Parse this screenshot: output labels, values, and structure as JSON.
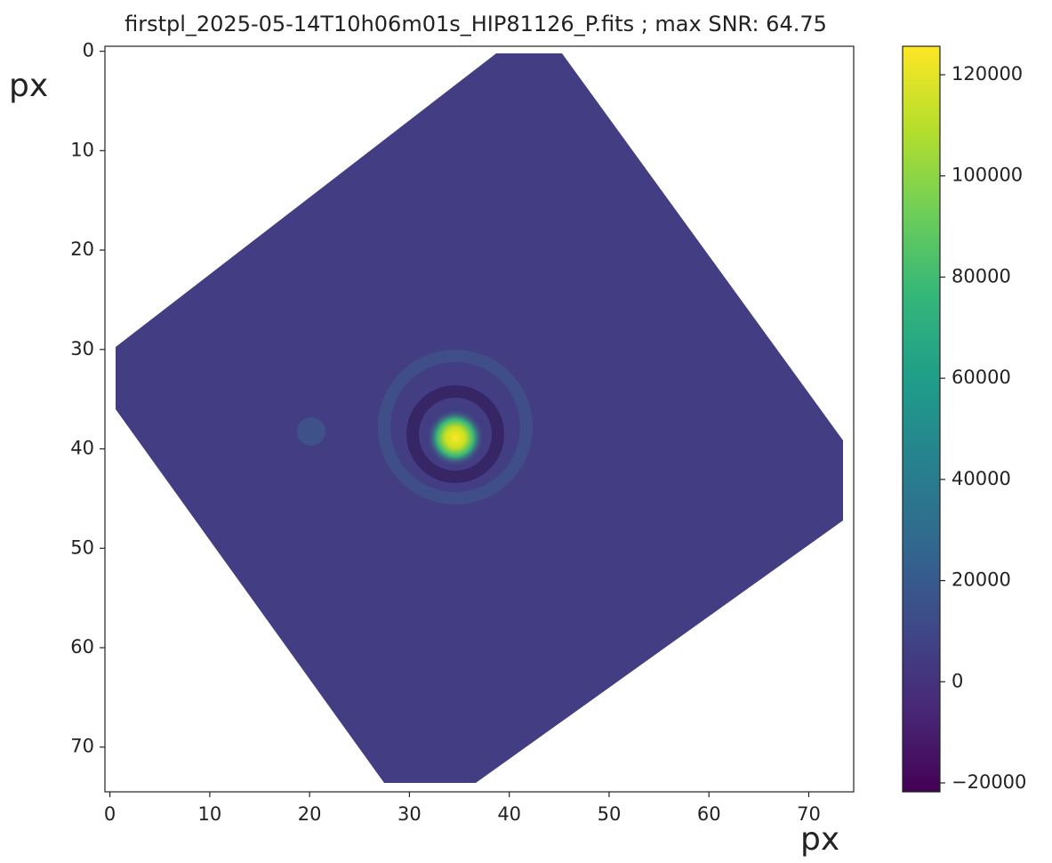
{
  "chart_data": {
    "type": "image",
    "title": "firstpl_2025-05-14T10h06m01s_HIP81126_P.fits ; max SNR: 64.75",
    "x_label": "px",
    "y_label": "px",
    "xlim": [
      -0.5,
      74.5
    ],
    "ylim": [
      74.5,
      -0.5
    ],
    "xticks": [
      0,
      10,
      20,
      30,
      40,
      50,
      60,
      70
    ],
    "yticks": [
      0,
      10,
      20,
      30,
      40,
      50,
      60,
      70
    ],
    "colorbar": {
      "lim": [
        -21760,
        125630
      ],
      "ticks": [
        {
          "value": -20000,
          "label": "−20000"
        },
        0,
        20000,
        40000,
        60000,
        80000,
        100000,
        120000
      ],
      "colors": [
        "#440154",
        "#482878",
        "#3e4989",
        "#31688e",
        "#26828e",
        "#1f9e89",
        "#35b779",
        "#6ece58",
        "#b5de2b",
        "#fde725"
      ]
    }
  }
}
